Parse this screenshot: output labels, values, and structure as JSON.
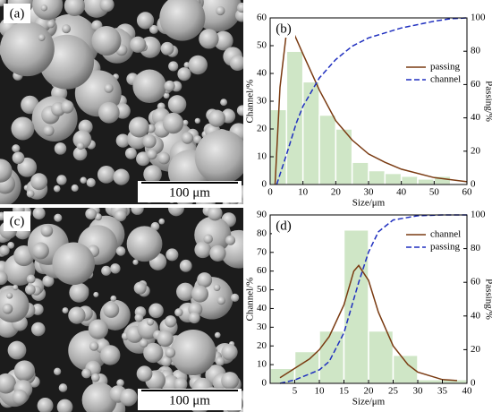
{
  "images": [
    {
      "label": "(a)",
      "scale_bar": "100 μm"
    },
    {
      "label": "(c)",
      "scale_bar": "100 μm"
    }
  ],
  "chart_data": [
    {
      "type": "histogram",
      "panel_label": "(b)",
      "xlabel": "Size/μm",
      "ylabel": "Channel/%",
      "y2label": "Passing/%",
      "bins": [
        0,
        5,
        10,
        15,
        20,
        25,
        30,
        35,
        40,
        45,
        50,
        55
      ],
      "counts": [
        27,
        48,
        37,
        25,
        20,
        8,
        5,
        4,
        3,
        2,
        3
      ],
      "bar_color": "#cfe6c6",
      "xlim": [
        0,
        60
      ],
      "xticks": [
        0,
        10,
        20,
        30,
        40,
        50,
        60
      ],
      "ylim": [
        0,
        60
      ],
      "yticks": [
        0,
        10,
        20,
        30,
        40,
        50,
        60
      ],
      "y2lim": [
        0,
        100
      ],
      "y2ticks": [
        0,
        20,
        40,
        60,
        80,
        100
      ],
      "legend": "upper right",
      "series": [
        {
          "name": "passing",
          "color": "#7a3b12",
          "dash": false,
          "axis": "y",
          "x": [
            1.5,
            3,
            5,
            6,
            7,
            10,
            15,
            20,
            25,
            30,
            35,
            40,
            50,
            60
          ],
          "values": [
            0,
            35,
            55,
            57,
            55,
            47,
            34,
            23,
            16,
            11,
            8,
            5.5,
            2.5,
            1
          ]
        },
        {
          "name": "channel",
          "color": "#1f2fbf",
          "dash": true,
          "axis": "y2",
          "x": [
            2,
            5,
            8,
            10,
            15,
            20,
            25,
            30,
            40,
            50,
            55,
            60
          ],
          "values": [
            0,
            18,
            37,
            47,
            64,
            75,
            83,
            88,
            94,
            98,
            99.5,
            100
          ]
        }
      ]
    },
    {
      "type": "histogram",
      "panel_label": "(d)",
      "xlabel": "Size/μm",
      "ylabel": "Channel/%",
      "y2label": "Passing/%",
      "bins": [
        0,
        5,
        10,
        15,
        20,
        25,
        30,
        35,
        40
      ],
      "counts": [
        8,
        17,
        28,
        82,
        28,
        15,
        2,
        2
      ],
      "bar_color": "#cfe6c6",
      "xlim": [
        0,
        40
      ],
      "xticks": [
        5,
        10,
        15,
        20,
        25,
        30,
        35,
        40
      ],
      "ylim": [
        0,
        90
      ],
      "yticks": [
        0,
        10,
        20,
        30,
        40,
        50,
        60,
        70,
        80,
        90
      ],
      "y2lim": [
        0,
        100
      ],
      "y2ticks": [
        0,
        20,
        40,
        60,
        80,
        100
      ],
      "legend": "upper right",
      "series": [
        {
          "name": "channel",
          "color": "#7a3b12",
          "dash": false,
          "axis": "y",
          "x": [
            2,
            5,
            8,
            10,
            12,
            15,
            17,
            18,
            20,
            22,
            25,
            28,
            30,
            35,
            38
          ],
          "values": [
            3,
            8,
            13,
            18,
            25,
            42,
            60,
            63,
            55,
            38,
            20,
            10,
            6,
            2,
            1.5
          ]
        },
        {
          "name": "passing",
          "color": "#1f2fbf",
          "dash": true,
          "axis": "y2",
          "x": [
            2,
            5,
            10,
            12,
            15,
            17,
            18,
            20,
            22,
            25,
            30,
            35,
            40
          ],
          "values": [
            0,
            2,
            8,
            13,
            30,
            50,
            60,
            78,
            90,
            97,
            99.5,
            100,
            100
          ]
        }
      ]
    }
  ]
}
